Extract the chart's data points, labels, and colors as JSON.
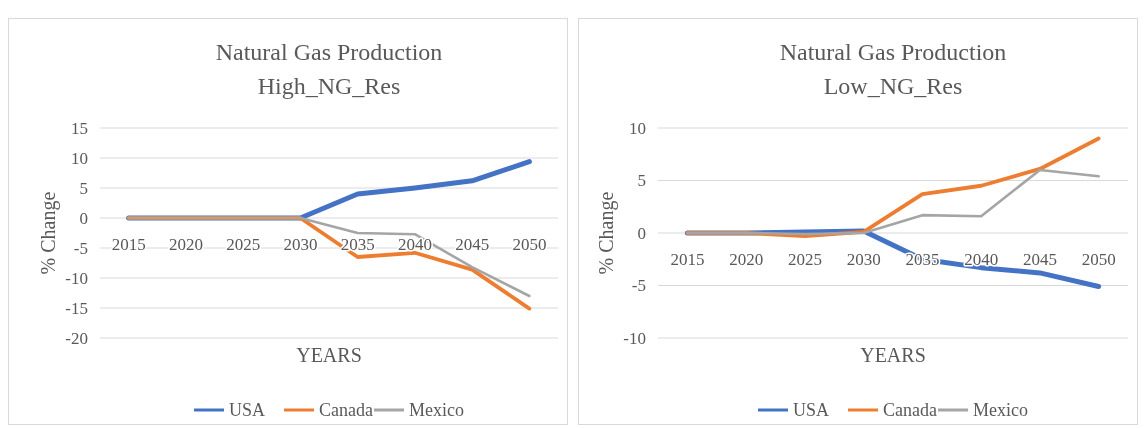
{
  "chart_data": [
    {
      "type": "line",
      "title": "Natural Gas Production",
      "subtitle": "High_NG_Res",
      "xlabel": "YEARS",
      "ylabel": "% Change",
      "categories": [
        "2015",
        "2020",
        "2025",
        "2030",
        "2035",
        "2040",
        "2045",
        "2050"
      ],
      "ylim": [
        -20,
        15
      ],
      "yticks": [
        -20,
        -15,
        -10,
        -5,
        0,
        5,
        10,
        15
      ],
      "grid": "y",
      "legend": "bottom",
      "marker": "none",
      "series": [
        {
          "name": "USA",
          "color": "#4472c4",
          "values": [
            0,
            0,
            0,
            0,
            4,
            5,
            6.2,
            9.4
          ]
        },
        {
          "name": "Canada",
          "color": "#ed7d31",
          "values": [
            0,
            0,
            0,
            0,
            -6.5,
            -5.8,
            -8.6,
            -15.1
          ]
        },
        {
          "name": "Mexico",
          "color": "#a5a5a5",
          "values": [
            0,
            0,
            0,
            0,
            -2.5,
            -2.7,
            -8.2,
            -13
          ]
        }
      ]
    },
    {
      "type": "line",
      "title": "Natural Gas Production",
      "subtitle": "Low_NG_Res",
      "xlabel": "YEARS",
      "ylabel": "% Change",
      "categories": [
        "2015",
        "2020",
        "2025",
        "2030",
        "2035",
        "2040",
        "2045",
        "2050"
      ],
      "ylim": [
        -10,
        10
      ],
      "yticks": [
        -10,
        -5,
        0,
        5,
        10
      ],
      "grid": "y",
      "legend": "bottom",
      "marker": "none",
      "series": [
        {
          "name": "USA",
          "color": "#4472c4",
          "values": [
            0,
            0,
            0.1,
            0.2,
            -2.5,
            -3.3,
            -3.8,
            -5.1
          ]
        },
        {
          "name": "Canada",
          "color": "#ed7d31",
          "values": [
            0,
            0,
            -0.3,
            0.1,
            3.7,
            4.5,
            6.1,
            9
          ]
        },
        {
          "name": "Mexico",
          "color": "#a5a5a5",
          "values": [
            0,
            0,
            -0.1,
            0,
            1.7,
            1.6,
            6,
            5.4
          ]
        }
      ]
    }
  ]
}
